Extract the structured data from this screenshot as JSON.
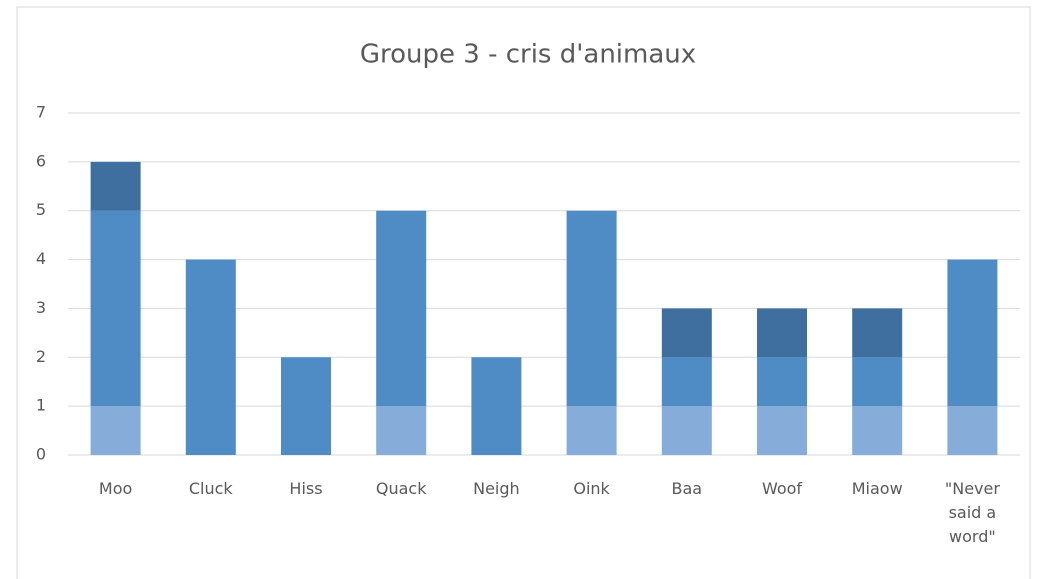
{
  "chart_data": {
    "type": "stacked-bar",
    "title": "Groupe 3 - cris d'animaux",
    "categories": [
      "Moo",
      "Cluck",
      "Hiss",
      "Quack",
      "Neigh",
      "Oink",
      "Baa",
      "Woof",
      "Miaow",
      "\"Never said a word\""
    ],
    "series": [
      {
        "color": "#86acd9",
        "values": [
          1,
          0,
          0,
          1,
          0,
          1,
          1,
          1,
          1,
          1
        ]
      },
      {
        "color": "#4f8bc4",
        "values": [
          4,
          4,
          2,
          4,
          2,
          4,
          1,
          1,
          1,
          3
        ]
      },
      {
        "color": "#3e6f9e",
        "values": [
          1,
          0,
          0,
          0,
          0,
          0,
          1,
          1,
          1,
          0
        ]
      }
    ],
    "ylim": [
      0,
      7
    ],
    "yticks": [
      0,
      1,
      2,
      3,
      4,
      5,
      6,
      7
    ],
    "grid": true
  }
}
